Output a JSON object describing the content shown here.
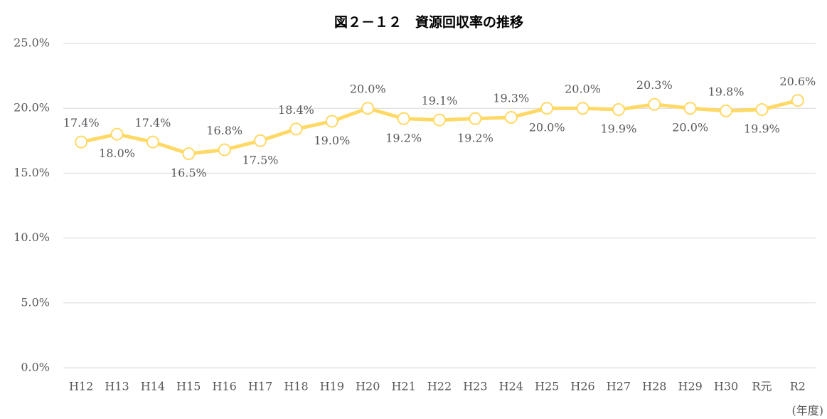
{
  "chart_data": {
    "type": "line",
    "title": "図２－１２　資源回収率の推移",
    "x_label": "(年度)",
    "categories": [
      "H12",
      "H13",
      "H14",
      "H15",
      "H16",
      "H17",
      "H18",
      "H19",
      "H20",
      "H21",
      "H22",
      "H23",
      "H24",
      "H25",
      "H26",
      "H27",
      "H28",
      "H29",
      "H30",
      "R元",
      "R2"
    ],
    "values": [
      17.4,
      18.0,
      17.4,
      16.5,
      16.8,
      17.5,
      18.4,
      19.0,
      20.0,
      19.2,
      19.1,
      19.2,
      19.3,
      20.0,
      20.0,
      19.9,
      20.3,
      20.0,
      19.8,
      19.9,
      20.6
    ],
    "value_labels": [
      "17.4%",
      "18.0%",
      "17.4%",
      "16.5%",
      "16.8%",
      "17.5%",
      "18.4%",
      "19.0%",
      "20.0%",
      "19.2%",
      "19.1%",
      "19.2%",
      "19.3%",
      "20.0%",
      "20.0%",
      "19.9%",
      "20.3%",
      "20.0%",
      "19.8%",
      "19.9%",
      "20.6%"
    ],
    "color": "#ffd966",
    "ylim": [
      0,
      25
    ],
    "yticks": [
      {
        "value": 0,
        "label": "0.0%"
      },
      {
        "value": 5,
        "label": "5.0%"
      },
      {
        "value": 10,
        "label": "10.0%"
      },
      {
        "value": 15,
        "label": "15.0%"
      },
      {
        "value": 20,
        "label": "20.0%"
      },
      {
        "value": 25,
        "label": "25.0%"
      }
    ],
    "grid": true
  }
}
